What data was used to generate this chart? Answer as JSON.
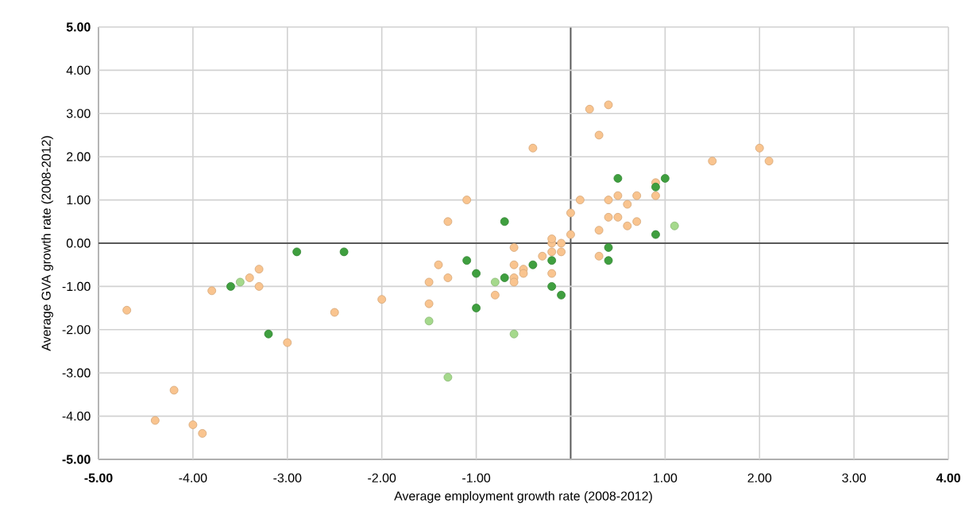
{
  "chart_data": {
    "type": "scatter",
    "xlabel": "Average employment growth rate (2008-2012)",
    "ylabel": "Average GVA growth rate (2008-2012)",
    "xlim": [
      -5,
      4
    ],
    "ylim": [
      -5,
      5
    ],
    "xticks": [
      {
        "value": -5,
        "label": "-5.00"
      },
      {
        "value": -4,
        "label": "-4.00"
      },
      {
        "value": -3,
        "label": "-3.00"
      },
      {
        "value": -2,
        "label": "-2.00"
      },
      {
        "value": -1,
        "label": "-1.00"
      },
      {
        "value": 0,
        "label": null
      },
      {
        "value": 1,
        "label": "1.00"
      },
      {
        "value": 2,
        "label": "2.00"
      },
      {
        "value": 3,
        "label": "3.00"
      },
      {
        "value": 4,
        "label": "4.00"
      }
    ],
    "yticks": [
      {
        "value": -5,
        "label": "-5.00"
      },
      {
        "value": -4,
        "label": "-4.00"
      },
      {
        "value": -3,
        "label": "-3.00"
      },
      {
        "value": -2,
        "label": "-2.00"
      },
      {
        "value": -1,
        "label": "-1.00"
      },
      {
        "value": 0,
        "label": "0.00"
      },
      {
        "value": 1,
        "label": "1.00"
      },
      {
        "value": 2,
        "label": "2.00"
      },
      {
        "value": 3,
        "label": "3.00"
      },
      {
        "value": 4,
        "label": "4.00"
      },
      {
        "value": 5,
        "label": "5.00"
      }
    ],
    "grid": true,
    "series": [
      {
        "color": "#f9c48f",
        "x": [
          -4.7,
          -4.4,
          -4.2,
          -4.0,
          -3.9,
          -3.8,
          -3.4,
          -3.3,
          -3.3,
          -3.0,
          -2.5,
          -2.0,
          -0.6,
          -0.2,
          -0.2,
          -0.1,
          -0.1,
          -1.4,
          -0.3,
          -0.6,
          -0.5,
          -0.5,
          -1.5,
          -1.3,
          -0.6,
          -0.6,
          -0.2,
          -0.8,
          -1.5,
          0.3,
          0.2,
          0.4,
          0.3,
          -0.4,
          1.5,
          2.0,
          2.1,
          0.9,
          -1.1,
          0.1,
          0.4,
          0.5,
          0.7,
          0.9,
          0.6,
          0.0,
          -1.3,
          0.4,
          0.5,
          0.6,
          0.7,
          0.3,
          0.0,
          -0.2
        ],
        "values": [
          -1.55,
          -4.1,
          -3.4,
          -4.2,
          -4.4,
          -1.1,
          -0.8,
          -0.6,
          -1.0,
          -2.3,
          -1.6,
          -1.3,
          -0.1,
          0.0,
          -0.2,
          0.0,
          -0.2,
          -0.5,
          -0.3,
          -0.5,
          -0.6,
          -0.7,
          -0.9,
          -0.8,
          -0.8,
          -0.9,
          -0.7,
          -1.2,
          -1.4,
          -0.3,
          3.1,
          3.2,
          2.5,
          2.2,
          1.9,
          2.2,
          1.9,
          1.4,
          1.0,
          1.0,
          1.0,
          1.1,
          1.1,
          1.1,
          0.9,
          0.7,
          0.5,
          0.6,
          0.6,
          0.4,
          0.5,
          0.3,
          0.2,
          0.1
        ]
      },
      {
        "color": "#3f9f3f",
        "x": [
          -3.6,
          -3.2,
          -2.9,
          -2.4,
          -1.1,
          -0.2,
          -1.0,
          -0.4,
          -0.7,
          -0.2,
          -0.1,
          -1.0,
          0.4,
          0.4,
          0.5,
          1.0,
          0.9,
          -0.7,
          0.9
        ],
        "values": [
          -1.0,
          -2.1,
          -0.2,
          -0.2,
          -0.4,
          -0.4,
          -0.7,
          -0.5,
          -0.8,
          -1.0,
          -1.2,
          -1.5,
          -0.1,
          -0.4,
          1.5,
          1.5,
          1.3,
          0.5,
          0.2
        ]
      },
      {
        "color": "#a5d98c",
        "x": [
          -3.5,
          -0.8,
          -1.5,
          -0.6,
          -1.3,
          1.1
        ],
        "values": [
          -0.9,
          -0.9,
          -1.8,
          -2.1,
          -3.1,
          0.4
        ]
      }
    ]
  }
}
